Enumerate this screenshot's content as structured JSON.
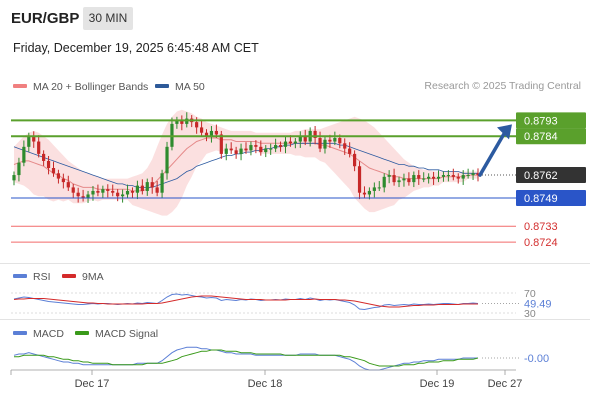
{
  "header": {
    "symbol": "EUR/GBP",
    "timeframe": "30 MIN",
    "datetime": "Friday, December 19, 2025 6:45:48 AM CET",
    "credit": "Research © 2025 Trading Central"
  },
  "legend": {
    "main": [
      {
        "label": "MA 20 + Bollinger Bands",
        "color": "#f08080"
      },
      {
        "label": "MA 50",
        "color": "#2d5a99"
      }
    ],
    "rsi": [
      {
        "label": "RSI",
        "color": "#5b7fd6"
      },
      {
        "label": "9MA",
        "color": "#d42a2a"
      }
    ],
    "macd": [
      {
        "label": "MACD",
        "color": "#5b7fd6"
      },
      {
        "label": "MACD Signal",
        "color": "#3a9a1a"
      }
    ]
  },
  "colors": {
    "up": "#2e8b2e",
    "down": "#c62828",
    "resistance": "#5aa02c",
    "support": "#2a55c8",
    "pivot": "#333333",
    "target": "#f26a6a",
    "bollinger": "#fadada",
    "arrow": "#2c5aa0"
  },
  "chart_data": [
    {
      "type": "candlestick",
      "ylim": [
        0.8715,
        0.88
      ],
      "x_ticks": [
        "Dec 17",
        "Dec 18",
        "Dec 19",
        "Dec 27"
      ],
      "levels": [
        {
          "value": 0.8793,
          "label": "0.8793",
          "role": "resistance"
        },
        {
          "value": 0.8784,
          "label": "0.8784",
          "role": "resistance"
        },
        {
          "value": 0.8762,
          "label": "0.8762",
          "role": "pivot"
        },
        {
          "value": 0.8749,
          "label": "0.8749",
          "role": "support"
        },
        {
          "value": 0.8733,
          "label": "0.8733",
          "role": "target"
        },
        {
          "value": 0.8724,
          "label": "0.8724",
          "role": "target"
        }
      ],
      "close": [
        0.8762,
        0.8769,
        0.8778,
        0.8784,
        0.8781,
        0.8774,
        0.877,
        0.8766,
        0.8763,
        0.876,
        0.8758,
        0.8755,
        0.8752,
        0.875,
        0.8749,
        0.8751,
        0.8753,
        0.8752,
        0.8754,
        0.8753,
        0.8752,
        0.875,
        0.8751,
        0.8753,
        0.8752,
        0.8756,
        0.8753,
        0.8758,
        0.8755,
        0.8752,
        0.8763,
        0.8778,
        0.8791,
        0.8793,
        0.8791,
        0.8794,
        0.8792,
        0.8789,
        0.8786,
        0.8784,
        0.8787,
        0.8785,
        0.8774,
        0.8777,
        0.8776,
        0.8774,
        0.8777,
        0.8776,
        0.8779,
        0.8778,
        0.8775,
        0.8777,
        0.8777,
        0.8779,
        0.8778,
        0.8781,
        0.878,
        0.8781,
        0.8784,
        0.8781,
        0.8787,
        0.8783,
        0.8777,
        0.8782,
        0.8781,
        0.8783,
        0.878,
        0.8777,
        0.8774,
        0.8767,
        0.8752,
        0.8751,
        0.8753,
        0.8755,
        0.8755,
        0.8761,
        0.8762,
        0.8758,
        0.8759,
        0.876,
        0.8758,
        0.8762,
        0.876,
        0.876,
        0.8761,
        0.876,
        0.8761,
        0.8762,
        0.8762,
        0.8761,
        0.876,
        0.8762,
        0.8762,
        0.8763,
        0.8762
      ],
      "ma20": [
        0.8768,
        0.8769,
        0.877,
        0.877,
        0.8769,
        0.8768,
        0.8767,
        0.8765,
        0.8763,
        0.8762,
        0.876,
        0.8759,
        0.8757,
        0.8756,
        0.8755,
        0.8755,
        0.8755,
        0.8754,
        0.8754,
        0.8754,
        0.8754,
        0.8754,
        0.8754,
        0.8754,
        0.8753,
        0.8753,
        0.8753,
        0.8754,
        0.8756,
        0.8759,
        0.8762,
        0.8765,
        0.8768,
        0.8771,
        0.8774,
        0.8777,
        0.8779,
        0.8781,
        0.8782,
        0.8783,
        0.8783,
        0.8783,
        0.8782,
        0.8782,
        0.8782,
        0.8781,
        0.8781,
        0.8781,
        0.8781,
        0.8781,
        0.878,
        0.878,
        0.878,
        0.878,
        0.878,
        0.878,
        0.878,
        0.878,
        0.878,
        0.878,
        0.878,
        0.878,
        0.8779,
        0.8779,
        0.8778,
        0.8777,
        0.8776,
        0.8775,
        0.8774,
        0.8772,
        0.877,
        0.8768,
        0.8766,
        0.8765,
        0.8764,
        0.8763,
        0.8762,
        0.8761,
        0.8761,
        0.876,
        0.876,
        0.876,
        0.876,
        0.876,
        0.876,
        0.876,
        0.876,
        0.8761,
        0.8761,
        0.8761,
        0.8761,
        0.8761,
        0.8762,
        0.8762,
        0.8762
      ],
      "bb_upper": [
        0.8778,
        0.8781,
        0.8784,
        0.8786,
        0.8787,
        0.8786,
        0.8784,
        0.8782,
        0.8779,
        0.8776,
        0.8773,
        0.877,
        0.8768,
        0.8766,
        0.8764,
        0.8763,
        0.8762,
        0.8761,
        0.876,
        0.876,
        0.876,
        0.876,
        0.876,
        0.876,
        0.8761,
        0.8762,
        0.8763,
        0.8766,
        0.8771,
        0.8778,
        0.8785,
        0.8791,
        0.8795,
        0.8798,
        0.8799,
        0.8798,
        0.8797,
        0.8795,
        0.8794,
        0.8792,
        0.8791,
        0.879,
        0.8789,
        0.8788,
        0.8787,
        0.8787,
        0.8787,
        0.8787,
        0.8787,
        0.8786,
        0.8786,
        0.8786,
        0.8786,
        0.8786,
        0.8786,
        0.8786,
        0.8786,
        0.8787,
        0.8787,
        0.8788,
        0.8788,
        0.8788,
        0.8788,
        0.8789,
        0.879,
        0.8791,
        0.8792,
        0.8793,
        0.8794,
        0.8795,
        0.8794,
        0.8793,
        0.8791,
        0.8789,
        0.8786,
        0.8783,
        0.878,
        0.8777,
        0.8774,
        0.8771,
        0.8769,
        0.8767,
        0.8766,
        0.8765,
        0.8765,
        0.8764,
        0.8764,
        0.8764,
        0.8764,
        0.8764,
        0.8764,
        0.8764,
        0.8764,
        0.8764,
        0.8764
      ],
      "bb_lower": [
        0.8758,
        0.8757,
        0.8756,
        0.8754,
        0.8751,
        0.875,
        0.875,
        0.8748,
        0.8747,
        0.8748,
        0.8747,
        0.8748,
        0.8746,
        0.8746,
        0.8746,
        0.8747,
        0.8748,
        0.8747,
        0.8748,
        0.8748,
        0.8748,
        0.8748,
        0.8748,
        0.8748,
        0.8745,
        0.8744,
        0.8743,
        0.8742,
        0.8741,
        0.874,
        0.8739,
        0.8739,
        0.8741,
        0.8744,
        0.8749,
        0.8756,
        0.8761,
        0.8767,
        0.877,
        0.8774,
        0.8775,
        0.8776,
        0.8775,
        0.8776,
        0.8777,
        0.8775,
        0.8775,
        0.8775,
        0.8775,
        0.8776,
        0.8774,
        0.8774,
        0.8774,
        0.8774,
        0.8774,
        0.8774,
        0.8774,
        0.8773,
        0.8773,
        0.8772,
        0.8772,
        0.8772,
        0.877,
        0.8769,
        0.8766,
        0.8763,
        0.876,
        0.8757,
        0.8754,
        0.8749,
        0.8746,
        0.8743,
        0.8741,
        0.8741,
        0.8742,
        0.8743,
        0.8744,
        0.8745,
        0.8748,
        0.8749,
        0.8751,
        0.8753,
        0.8754,
        0.8755,
        0.8755,
        0.8756,
        0.8756,
        0.8758,
        0.8758,
        0.8758,
        0.8758,
        0.8758,
        0.876,
        0.876,
        0.876
      ],
      "ma50": [
        0.8778,
        0.8777,
        0.8776,
        0.8775,
        0.8774,
        0.8773,
        0.8772,
        0.8771,
        0.877,
        0.8769,
        0.8768,
        0.8767,
        0.8766,
        0.8765,
        0.8764,
        0.8763,
        0.8762,
        0.8761,
        0.876,
        0.8759,
        0.8758,
        0.8757,
        0.8757,
        0.8756,
        0.8756,
        0.8755,
        0.8755,
        0.8755,
        0.8755,
        0.8756,
        0.8757,
        0.8758,
        0.8759,
        0.876,
        0.8762,
        0.8764,
        0.8765,
        0.8767,
        0.8768,
        0.8769,
        0.877,
        0.8771,
        0.8772,
        0.8773,
        0.8773,
        0.8774,
        0.8774,
        0.8775,
        0.8775,
        0.8776,
        0.8776,
        0.8777,
        0.8777,
        0.8778,
        0.8778,
        0.8779,
        0.8779,
        0.878,
        0.878,
        0.878,
        0.878,
        0.878,
        0.878,
        0.878,
        0.878,
        0.878,
        0.8779,
        0.8779,
        0.8778,
        0.8777,
        0.8776,
        0.8775,
        0.8774,
        0.8773,
        0.8772,
        0.8771,
        0.877,
        0.8769,
        0.8768,
        0.8768,
        0.8767,
        0.8767,
        0.8766,
        0.8766,
        0.8765,
        0.8765,
        0.8765,
        0.8764,
        0.8764,
        0.8764,
        0.8764,
        0.8763,
        0.8763,
        0.8763,
        0.8763
      ],
      "projection": {
        "from": 0.8762,
        "to": 0.8793
      }
    },
    {
      "type": "line",
      "name": "RSI",
      "ylim": [
        20,
        80
      ],
      "y_ticks": [
        70,
        30
      ],
      "value_label": "49.49",
      "rsi": [
        58,
        60,
        62,
        61,
        59,
        57,
        55,
        53,
        52,
        51,
        50,
        49,
        48,
        47,
        47,
        48,
        49,
        48,
        49,
        49,
        48,
        47,
        48,
        49,
        48,
        50,
        49,
        51,
        50,
        49,
        55,
        62,
        67,
        68,
        66,
        67,
        65,
        63,
        62,
        60,
        61,
        60,
        55,
        57,
        56,
        55,
        57,
        56,
        58,
        57,
        55,
        56,
        56,
        57,
        56,
        58,
        57,
        57,
        59,
        57,
        60,
        58,
        55,
        57,
        56,
        57,
        55,
        53,
        51,
        46,
        38,
        37,
        39,
        41,
        42,
        46,
        47,
        45,
        46,
        47,
        46,
        48,
        47,
        47,
        48,
        47,
        48,
        49,
        49,
        48,
        47,
        49,
        49,
        50,
        49
      ],
      "ma9": [
        57,
        58,
        58,
        59,
        59,
        59,
        59,
        58,
        57,
        56,
        55,
        54,
        53,
        52,
        51,
        50,
        50,
        49,
        49,
        48,
        48,
        48,
        48,
        48,
        48,
        48,
        48,
        49,
        49,
        49,
        50,
        52,
        54,
        56,
        58,
        60,
        62,
        63,
        64,
        64,
        64,
        63,
        62,
        61,
        60,
        59,
        58,
        57,
        57,
        57,
        57,
        56,
        56,
        56,
        56,
        56,
        57,
        57,
        57,
        57,
        57,
        58,
        57,
        57,
        57,
        57,
        56,
        56,
        55,
        54,
        52,
        50,
        48,
        46,
        44,
        43,
        42,
        42,
        42,
        43,
        44,
        45,
        45,
        46,
        46,
        46,
        47,
        47,
        47,
        47,
        47,
        48,
        48,
        48,
        48
      ]
    },
    {
      "type": "line",
      "name": "MACD",
      "ylim": [
        -0.0012,
        0.0012
      ],
      "value_label": "-0.00",
      "macd": [
        0.0002,
        0.0003,
        0.0003,
        0.0004,
        0.0003,
        0.0002,
        0.0001,
        0.0,
        -0.0001,
        -0.0002,
        -0.0003,
        -0.0003,
        -0.0004,
        -0.0004,
        -0.0005,
        -0.0005,
        -0.0005,
        -0.0005,
        -0.0005,
        -0.0005,
        -0.0005,
        -0.0005,
        -0.0005,
        -0.0005,
        -0.0005,
        -0.0004,
        -0.0004,
        -0.0004,
        -0.0004,
        -0.0004,
        -0.0002,
        0.0001,
        0.0004,
        0.0006,
        0.0007,
        0.0008,
        0.0008,
        0.0008,
        0.0007,
        0.0007,
        0.0006,
        0.0006,
        0.0005,
        0.0004,
        0.0004,
        0.0003,
        0.0003,
        0.0003,
        0.0003,
        0.0002,
        0.0002,
        0.0002,
        0.0002,
        0.0002,
        0.0002,
        0.0002,
        0.0002,
        0.0002,
        0.0003,
        0.0003,
        0.0003,
        0.0003,
        0.0002,
        0.0002,
        0.0002,
        0.0002,
        0.0001,
        0.0,
        -0.0001,
        -0.0003,
        -0.0006,
        -0.0008,
        -0.0009,
        -0.0009,
        -0.0009,
        -0.0008,
        -0.0007,
        -0.0006,
        -0.0005,
        -0.0004,
        -0.0004,
        -0.0003,
        -0.0003,
        -0.0002,
        -0.0002,
        -0.0002,
        -0.0001,
        -0.0001,
        -0.0001,
        -0.0001,
        -0.0001,
        0.0,
        0.0,
        0.0,
        0.0
      ],
      "signal": [
        0.0001,
        0.0001,
        0.0002,
        0.0002,
        0.0002,
        0.0002,
        0.0002,
        0.0001,
        0.0001,
        0.0,
        -0.0001,
        -0.0001,
        -0.0002,
        -0.0002,
        -0.0003,
        -0.0003,
        -0.0004,
        -0.0004,
        -0.0004,
        -0.0004,
        -0.0005,
        -0.0005,
        -0.0005,
        -0.0005,
        -0.0005,
        -0.0005,
        -0.0005,
        -0.0004,
        -0.0004,
        -0.0004,
        -0.0004,
        -0.0003,
        -0.0002,
        -0.0001,
        0.0001,
        0.0002,
        0.0003,
        0.0004,
        0.0005,
        0.0005,
        0.0006,
        0.0006,
        0.0006,
        0.0005,
        0.0005,
        0.0005,
        0.0004,
        0.0004,
        0.0004,
        0.0003,
        0.0003,
        0.0003,
        0.0003,
        0.0003,
        0.0003,
        0.0002,
        0.0002,
        0.0002,
        0.0002,
        0.0002,
        0.0002,
        0.0002,
        0.0002,
        0.0002,
        0.0002,
        0.0002,
        0.0002,
        0.0001,
        0.0001,
        0.0,
        -0.0001,
        -0.0002,
        -0.0004,
        -0.0005,
        -0.0006,
        -0.0006,
        -0.0006,
        -0.0006,
        -0.0006,
        -0.0005,
        -0.0005,
        -0.0005,
        -0.0004,
        -0.0004,
        -0.0003,
        -0.0003,
        -0.0003,
        -0.0002,
        -0.0002,
        -0.0002,
        -0.0001,
        -0.0001,
        -0.0001,
        -0.0001,
        0.0
      ]
    }
  ]
}
